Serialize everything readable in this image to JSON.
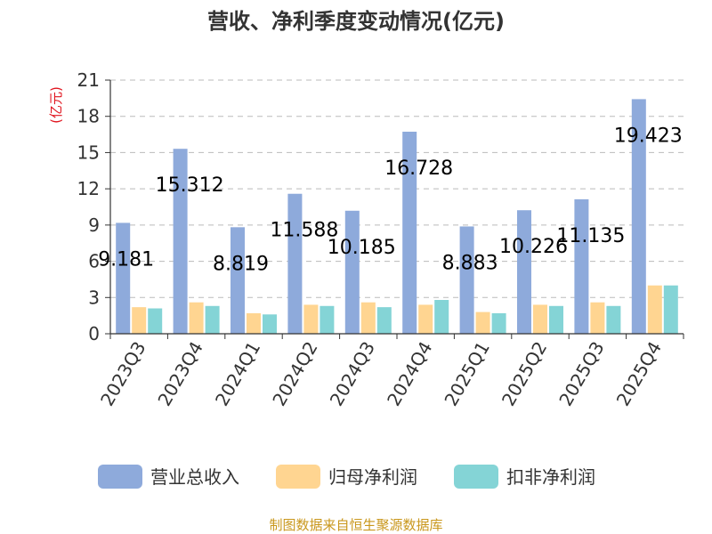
{
  "chart_data": {
    "type": "bar",
    "title": "营收、净利季度变动情况(亿元)",
    "ylabel": "(亿元)",
    "ylim": [
      0,
      21
    ],
    "yticks": [
      0,
      3,
      6,
      9,
      12,
      15,
      18,
      21
    ],
    "grid": true,
    "legend_position": "bottom",
    "categories": [
      "2023Q3",
      "2023Q4",
      "2024Q1",
      "2024Q2",
      "2024Q3",
      "2024Q4",
      "2025Q1",
      "2025Q2",
      "2025Q3",
      "2025Q4"
    ],
    "series": [
      {
        "name": "营业总收入",
        "color": "#8eaadb",
        "labeled": true,
        "values": [
          9.181,
          15.312,
          8.819,
          11.588,
          10.185,
          16.728,
          8.883,
          10.226,
          11.135,
          19.423
        ]
      },
      {
        "name": "归母净利润",
        "color": "#ffd591",
        "values": [
          2.2,
          2.6,
          1.7,
          2.4,
          2.6,
          2.4,
          1.8,
          2.4,
          2.6,
          4.0
        ]
      },
      {
        "name": "扣非净利润",
        "color": "#84d4d6",
        "values": [
          2.1,
          2.3,
          1.6,
          2.3,
          2.2,
          2.8,
          1.7,
          2.3,
          2.3,
          4.0
        ]
      }
    ]
  },
  "footer": {
    "source": "制图数据来自恒生聚源数据库"
  }
}
